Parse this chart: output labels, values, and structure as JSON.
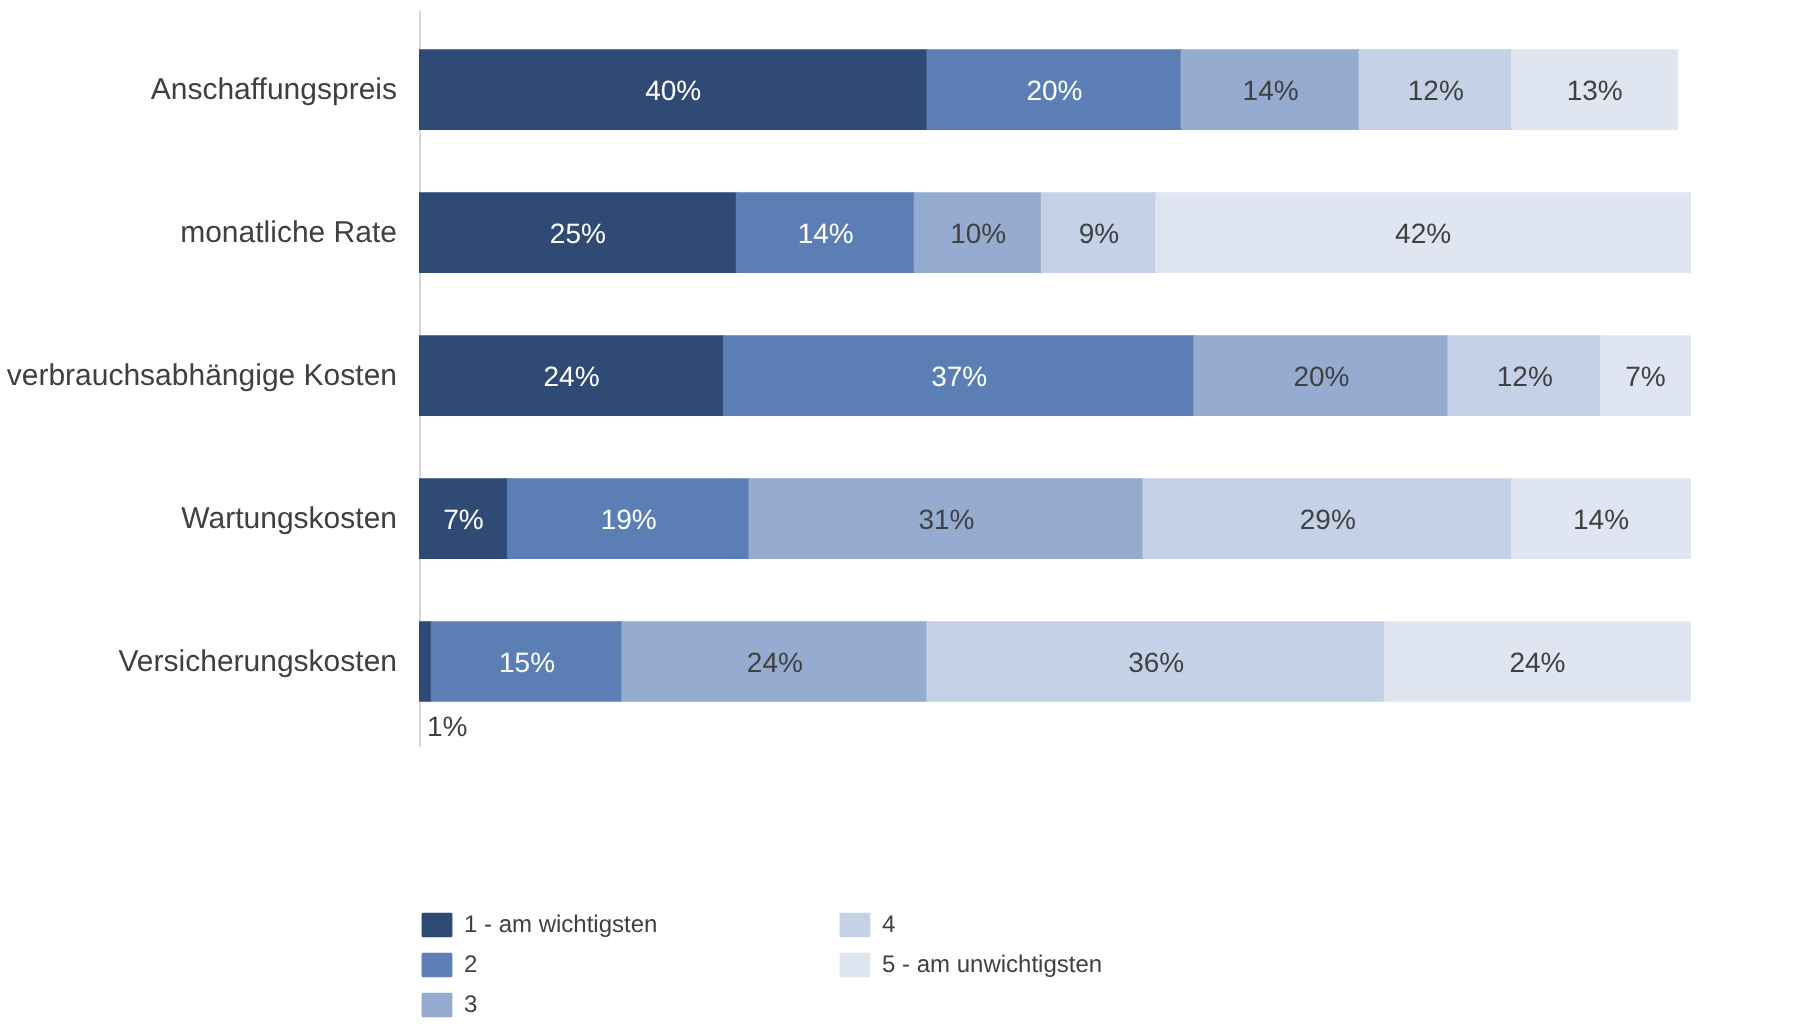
{
  "chart_data": {
    "type": "bar",
    "orientation": "horizontal",
    "stacked": true,
    "legend": "bottom",
    "categories": [
      "Anschaffungspreis",
      "monatliche Rate",
      "verbrauchsabhängige Kosten",
      "Wartungskosten",
      "Versicherungskosten"
    ],
    "series": [
      {
        "name": "1 - am wichtigsten",
        "color": "#2f4a75",
        "values": [
          40,
          25,
          24,
          7,
          1
        ],
        "value_labels": [
          "40%",
          "25%",
          "24%",
          "7%",
          "1%"
        ]
      },
      {
        "name": "2",
        "color": "#5b7fb5",
        "values": [
          20,
          14,
          37,
          19,
          15
        ],
        "value_labels": [
          "20%",
          "14%",
          "37%",
          "19%",
          "15%"
        ]
      },
      {
        "name": "3",
        "color": "#95acd0",
        "values": [
          14,
          10,
          20,
          31,
          24
        ],
        "value_labels": [
          "14%",
          "10%",
          "20%",
          "31%",
          "24%"
        ]
      },
      {
        "name": "4",
        "color": "#c4d1e6",
        "values": [
          12,
          9,
          12,
          29,
          36
        ],
        "value_labels": [
          "12%",
          "9%",
          "12%",
          "29%",
          "36%"
        ]
      },
      {
        "name": "5 - am unwichtigsten",
        "color": "#dfe6f1",
        "values": [
          13,
          42,
          7,
          14,
          24
        ],
        "value_labels": [
          "13%",
          "42%",
          "7%",
          "14%",
          "24%"
        ]
      }
    ]
  }
}
